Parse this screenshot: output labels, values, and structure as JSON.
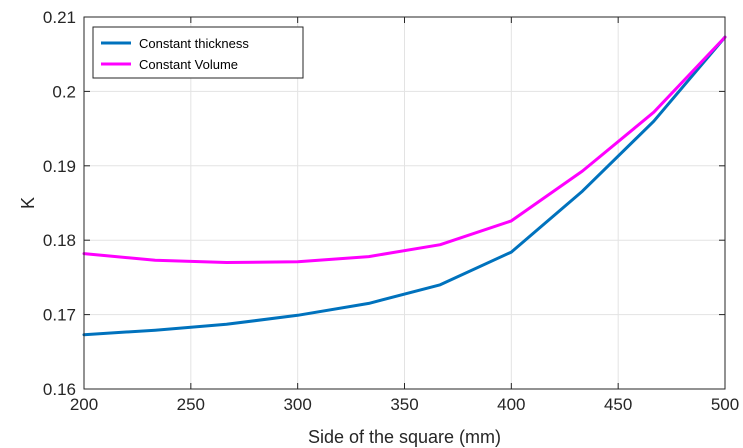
{
  "chart_data": {
    "type": "line",
    "xlabel": "Side of the square (mm)",
    "ylabel": "K",
    "xlim": [
      200,
      500
    ],
    "ylim": [
      0.16,
      0.21
    ],
    "xticks": [
      200,
      250,
      300,
      350,
      400,
      450,
      500
    ],
    "yticks": [
      0.16,
      0.17,
      0.18,
      0.19,
      0.2,
      0.21
    ],
    "xtick_labels": [
      "200",
      "250",
      "300",
      "350",
      "400",
      "450",
      "500"
    ],
    "ytick_labels": [
      "0.16",
      "0.17",
      "0.18",
      "0.19",
      "0.2",
      "0.21"
    ],
    "grid": true,
    "legend_position": "top-left",
    "x": [
      200,
      233.3,
      266.7,
      300,
      333.3,
      366.7,
      400,
      433.3,
      466.7,
      500
    ],
    "series": [
      {
        "name": "Constant thickness",
        "color": "#0072BD",
        "values": [
          0.1673,
          0.1679,
          0.1687,
          0.1699,
          0.1715,
          0.174,
          0.1784,
          0.1866,
          0.196,
          0.2073
        ]
      },
      {
        "name": "Constant Volume",
        "color": "#FF00FF",
        "values": [
          0.1782,
          0.1773,
          0.177,
          0.1771,
          0.1778,
          0.1794,
          0.1826,
          0.1893,
          0.1972,
          0.2073
        ]
      }
    ]
  }
}
